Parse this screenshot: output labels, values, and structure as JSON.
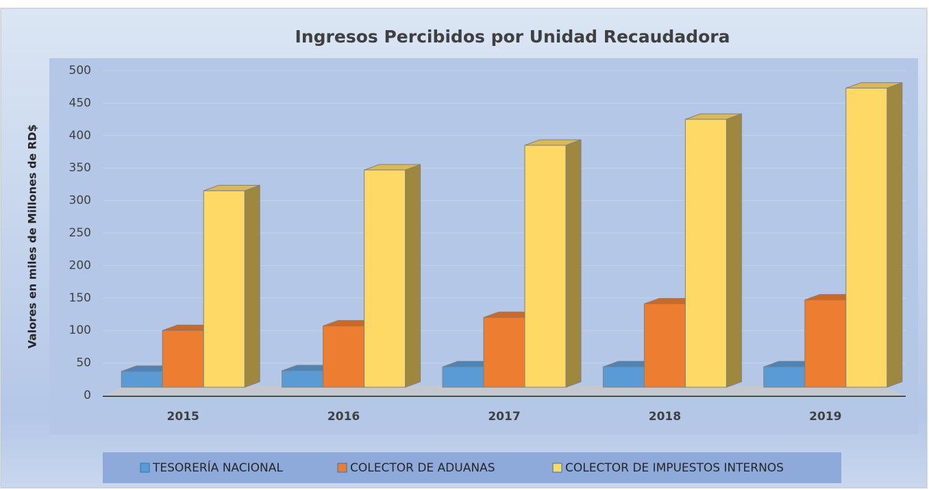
{
  "chart_data": {
    "type": "bar3d",
    "title": "Ingresos Percibidos por Unidad Recaudadora",
    "y_label": "Valores en miles de Millones de RD$",
    "categories": [
      "2015",
      "2016",
      "2017",
      "2018",
      "2019"
    ],
    "series": [
      {
        "name": "TESORERÍA NACIONAL",
        "color": "#5b9bd5",
        "values": [
          37,
          38,
          44,
          44,
          44
        ]
      },
      {
        "name": "COLECTOR DE ADUANAS",
        "color": "#ed7d31",
        "values": [
          100,
          107,
          120,
          141,
          147
        ]
      },
      {
        "name": "COLECTOR DE IMPUESTOS INTERNOS",
        "color": "#ffd966",
        "values": [
          315,
          347,
          385,
          425,
          473
        ]
      }
    ],
    "ylim": [
      0,
      500
    ],
    "yticks": [
      0,
      50,
      100,
      150,
      200,
      250,
      300,
      350,
      400,
      450,
      500
    ],
    "grid": true,
    "legend": "bottom"
  }
}
